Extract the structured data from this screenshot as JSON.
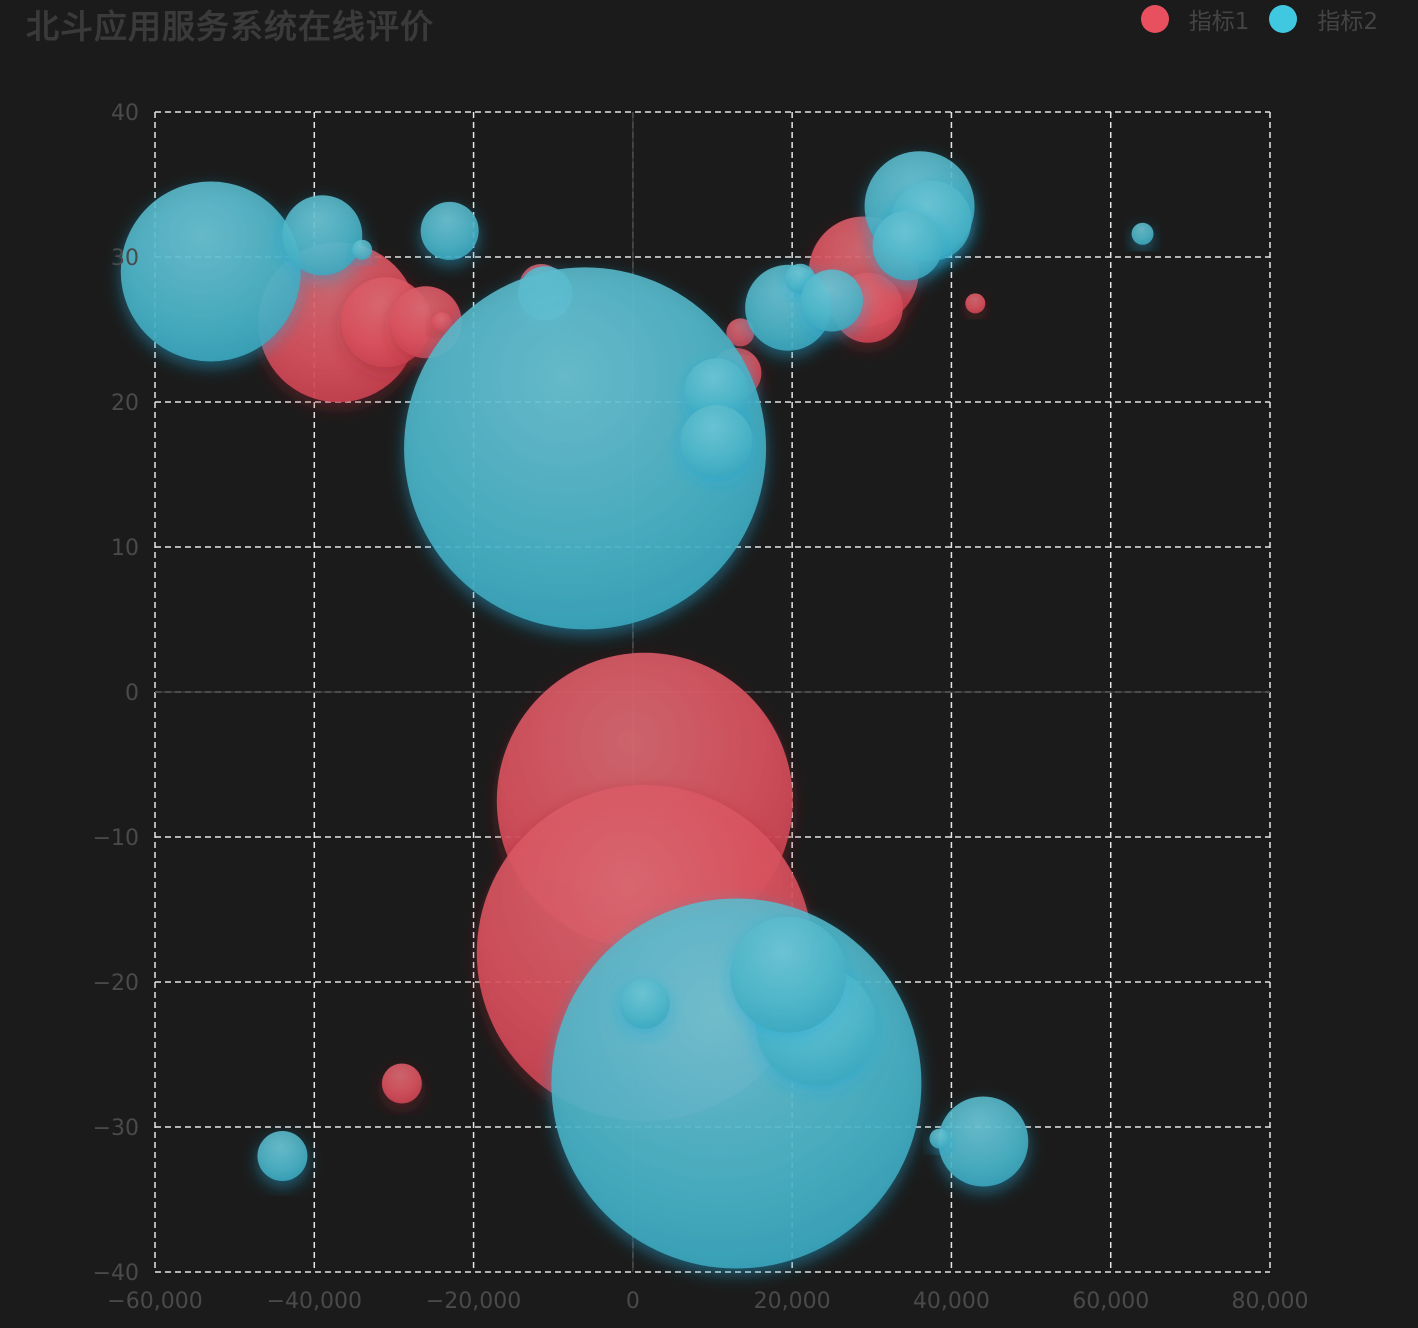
{
  "title": "北斗应用服务系统在线评价",
  "legend": [
    {
      "label": "指标1",
      "color": "#e8505f"
    },
    {
      "label": "指标2",
      "color": "#3fc8df"
    }
  ],
  "chart_data": {
    "type": "scatter",
    "title": "北斗应用服务系统在线评价",
    "xlabel": "",
    "ylabel": "",
    "xlim": [
      -60000,
      80000
    ],
    "ylim": [
      -40,
      40
    ],
    "xticks": [
      "-60,000",
      "-40,000",
      "-20,000",
      "0",
      "20,000",
      "40,000",
      "60,000",
      "80,000"
    ],
    "xtick_values": [
      -60000,
      -40000,
      -20000,
      0,
      20000,
      40000,
      60000,
      80000
    ],
    "yticks": [
      "40",
      "30",
      "20",
      "10",
      "0",
      "-10",
      "-20",
      "-30",
      "-40"
    ],
    "ytick_values": [
      40,
      30,
      20,
      10,
      0,
      -10,
      -20,
      -30,
      -40
    ],
    "grid": true,
    "legend_position": "top-right",
    "series": [
      {
        "name": "指标1",
        "color": "#e8505f",
        "points": [
          {
            "x": 1500,
            "y": -7.5,
            "size": 148
          },
          {
            "x": 1500,
            "y": -18,
            "size": 168
          },
          {
            "x": -37000,
            "y": 25.5,
            "size": 80
          },
          {
            "x": -31000,
            "y": 25.5,
            "size": 45
          },
          {
            "x": -26000,
            "y": 25.5,
            "size": 36
          },
          {
            "x": -24000,
            "y": 25.5,
            "size": 10
          },
          {
            "x": -11500,
            "y": 28,
            "size": 22
          },
          {
            "x": 13000,
            "y": 22,
            "size": 25
          },
          {
            "x": 13500,
            "y": 24.8,
            "size": 14
          },
          {
            "x": 29000,
            "y": 29,
            "size": 55
          },
          {
            "x": 29500,
            "y": 26.5,
            "size": 35
          },
          {
            "x": 43000,
            "y": 26.8,
            "size": 10
          },
          {
            "x": -29000,
            "y": -27,
            "size": 20
          }
        ]
      },
      {
        "name": "指标2",
        "color": "#3fc8df",
        "points": [
          {
            "x": -53000,
            "y": 29,
            "size": 90
          },
          {
            "x": -39000,
            "y": 31.5,
            "size": 40
          },
          {
            "x": -34000,
            "y": 30.5,
            "size": 10
          },
          {
            "x": -23000,
            "y": 31.8,
            "size": 29
          },
          {
            "x": -11000,
            "y": 27.5,
            "size": 27
          },
          {
            "x": -6000,
            "y": 16.8,
            "size": 181
          },
          {
            "x": 10500,
            "y": 20.8,
            "size": 32
          },
          {
            "x": 10500,
            "y": 17.3,
            "size": 36
          },
          {
            "x": 19500,
            "y": 26.5,
            "size": 43
          },
          {
            "x": 21000,
            "y": 28.5,
            "size": 15
          },
          {
            "x": 25000,
            "y": 27,
            "size": 31
          },
          {
            "x": 36000,
            "y": 33.5,
            "size": 55
          },
          {
            "x": 37500,
            "y": 32.5,
            "size": 40
          },
          {
            "x": 34500,
            "y": 30.8,
            "size": 35
          },
          {
            "x": 64000,
            "y": 31.6,
            "size": 11
          },
          {
            "x": 13000,
            "y": -27,
            "size": 185
          },
          {
            "x": 23000,
            "y": -23,
            "size": 60
          },
          {
            "x": 1500,
            "y": -21.5,
            "size": 25
          },
          {
            "x": 19500,
            "y": -19.5,
            "size": 58
          },
          {
            "x": 44000,
            "y": -31,
            "size": 45
          },
          {
            "x": 38500,
            "y": -30.8,
            "size": 10
          },
          {
            "x": -44000,
            "y": -32,
            "size": 25
          }
        ]
      }
    ]
  }
}
